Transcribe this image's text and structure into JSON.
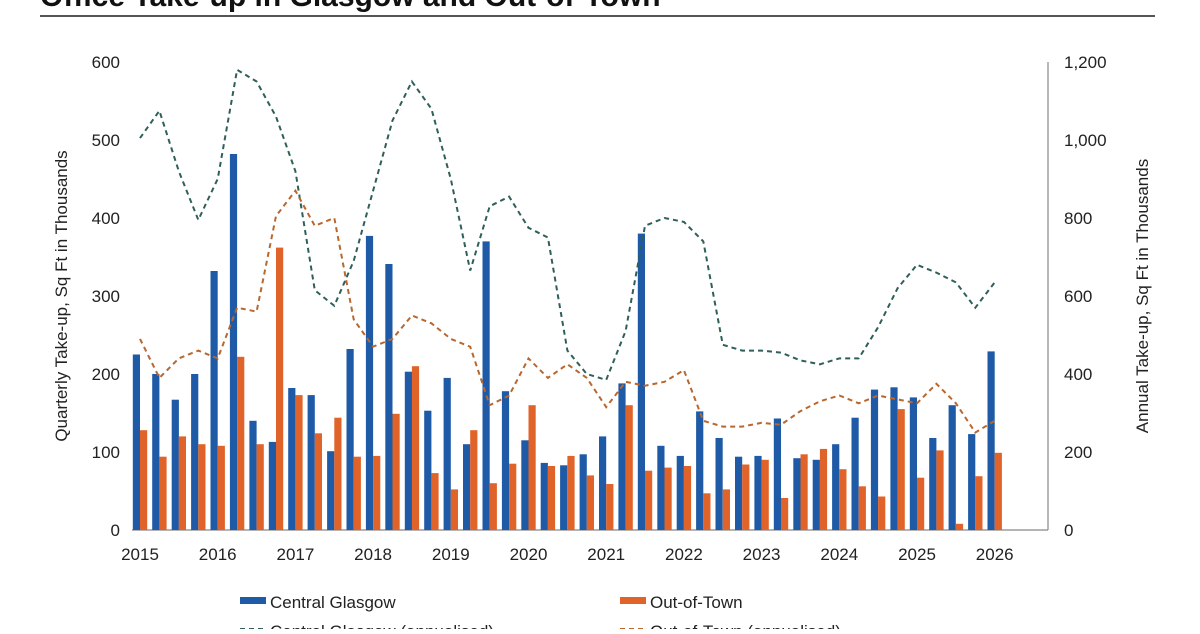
{
  "chart_data": {
    "type": "bar",
    "title": "Office Take-up in Glasgow and Out-of-Town",
    "ylabel_left": "Quarterly Take-up, Sq Ft in Thousands",
    "ylabel_right": "Annual Take-up, Sq Ft in Thousands",
    "ylim_left": [
      0,
      600
    ],
    "ylim_right": [
      0,
      1200
    ],
    "yticks_left": [
      "0",
      "100",
      "200",
      "300",
      "400",
      "500",
      "600"
    ],
    "yticks_right": [
      "0",
      "200",
      "400",
      "600",
      "800",
      "1,000",
      "1,200"
    ],
    "x_tick_labels": [
      "2015",
      "2016",
      "2017",
      "2018",
      "2019",
      "2020",
      "2021",
      "2022",
      "2023",
      "2024",
      "2025",
      "2026"
    ],
    "x_start": 2015,
    "grid": false,
    "legend_position": "bottom",
    "series": [
      {
        "name": "Central Glasgow",
        "type": "bar",
        "axis": "left",
        "color": "#1f5aa6",
        "values": [
          225,
          200,
          167,
          200,
          332,
          482,
          140,
          113,
          182,
          173,
          101,
          232,
          377,
          341,
          203,
          153,
          195,
          110,
          370,
          178,
          115,
          86,
          83,
          97,
          120,
          188,
          380,
          108,
          95,
          152,
          118,
          94,
          95,
          143,
          92,
          90,
          110,
          144,
          180,
          183,
          170,
          118,
          160,
          123,
          229
        ]
      },
      {
        "name": "Out-of-Town",
        "type": "bar",
        "axis": "left",
        "color": "#e0632a",
        "values": [
          128,
          94,
          120,
          110,
          108,
          222,
          110,
          362,
          173,
          124,
          144,
          94,
          95,
          149,
          210,
          73,
          52,
          128,
          60,
          85,
          160,
          82,
          95,
          70,
          59,
          160,
          76,
          80,
          82,
          47,
          52,
          84,
          90,
          41,
          97,
          104,
          78,
          56,
          43,
          155,
          67,
          102,
          8,
          69,
          99
        ]
      },
      {
        "name": "Central Glasgow (annualised)",
        "type": "line",
        "axis": "right",
        "color": "#2f5f5a",
        "dashed": true,
        "values": [
          1005,
          1075,
          920,
          795,
          900,
          1180,
          1150,
          1060,
          920,
          615,
          575,
          690,
          870,
          1050,
          1150,
          1080,
          900,
          665,
          830,
          855,
          775,
          750,
          460,
          400,
          385,
          510,
          780,
          800,
          790,
          740,
          475,
          460,
          460,
          455,
          435,
          425,
          440,
          440,
          520,
          620,
          680,
          660,
          635,
          570,
          635
        ]
      },
      {
        "name": "Out-of-Town (annualised)",
        "type": "line",
        "axis": "right",
        "color": "#b8672e",
        "dashed": true,
        "values": [
          490,
          390,
          440,
          460,
          440,
          570,
          560,
          805,
          870,
          780,
          800,
          540,
          470,
          490,
          550,
          530,
          490,
          470,
          320,
          345,
          440,
          390,
          425,
          390,
          315,
          380,
          370,
          380,
          410,
          280,
          265,
          265,
          275,
          270,
          305,
          330,
          345,
          325,
          345,
          335,
          325,
          375,
          325,
          250,
          280
        ]
      }
    ]
  }
}
